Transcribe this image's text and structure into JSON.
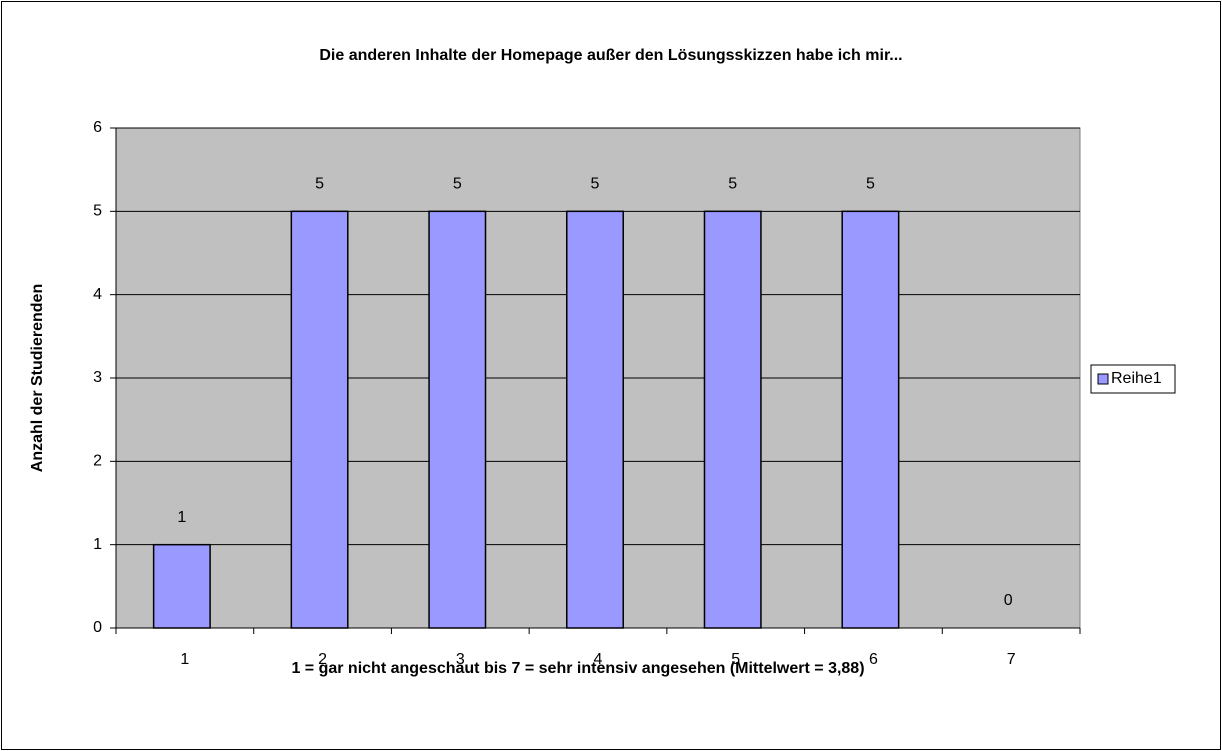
{
  "chart_data": {
    "type": "bar",
    "title": "Die anderen Inhalte der Homepage außer den Lösungsskizzen habe ich mir...",
    "xlabel": "1 = gar nicht angeschaut bis 7 = sehr intensiv angesehen (Mittelwert = 3,88)",
    "ylabel": "Anzahl der Studierenden",
    "categories": [
      "1",
      "2",
      "3",
      "4",
      "5",
      "6",
      "7"
    ],
    "series": [
      {
        "name": "Reihe1",
        "color": "#9999ff",
        "values": [
          1,
          5,
          5,
          5,
          5,
          5,
          0
        ]
      }
    ],
    "ylim": [
      0,
      6
    ],
    "yticks": [
      0,
      1,
      2,
      3,
      4,
      5,
      6
    ],
    "grid": true,
    "legend": "right"
  }
}
